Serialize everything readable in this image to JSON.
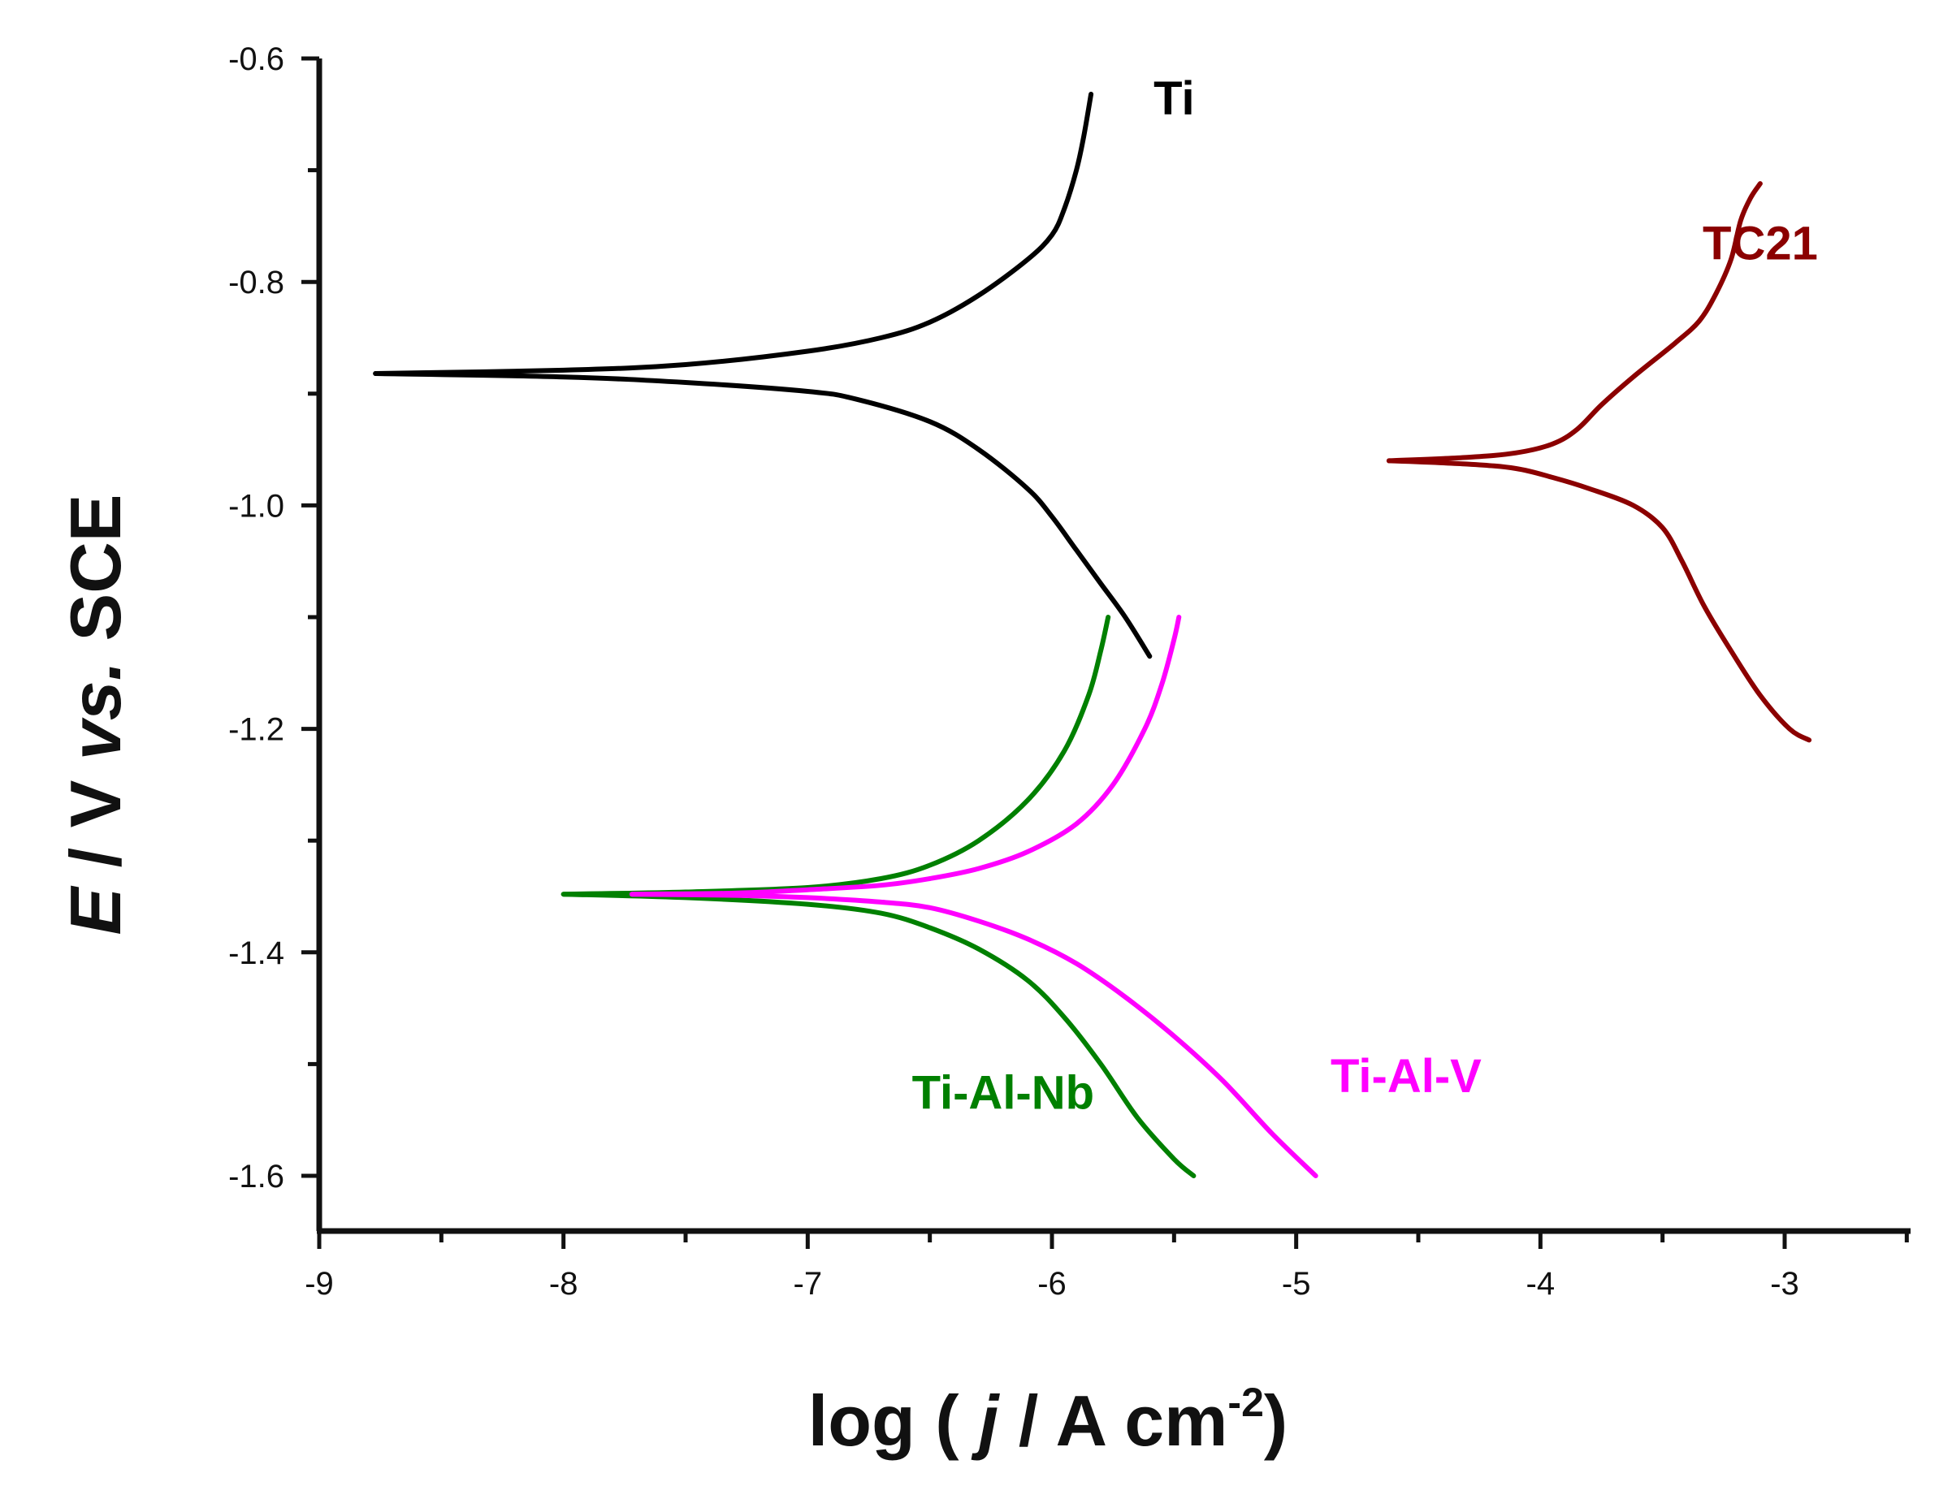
{
  "chart_data": {
    "type": "line",
    "title": "",
    "xlabel": {
      "prefix": "log ( ",
      "var": "j",
      "middle": " / A cm",
      "sup": "-2",
      "suffix": ")"
    },
    "ylabel": {
      "var": "E",
      "middle": " / V ",
      "vs": "vs.",
      "suffix": " SCE"
    },
    "xlim": [
      -9,
      -2.5
    ],
    "ylim": [
      -1.65,
      -0.6
    ],
    "xticks": [
      -9,
      -8,
      -7,
      -6,
      -5,
      -4,
      -3
    ],
    "xtick_labels": [
      "-9",
      "-8",
      "-7",
      "-6",
      "-5",
      "-4",
      "-3"
    ],
    "yticks": [
      -0.6,
      -0.8,
      -1.0,
      -1.2,
      -1.4,
      -1.6
    ],
    "ytick_labels": [
      "-0.6",
      "-0.8",
      "-1.0",
      "-1.2",
      "-1.4",
      "-1.6"
    ],
    "legend": "inline labels",
    "series": [
      {
        "name": "Ti",
        "color": "#000000",
        "label_at": [
          -5.5,
          -0.65
        ],
        "anodic": [
          [
            -8.77,
            -0.882
          ],
          [
            -8.0,
            -0.879
          ],
          [
            -7.5,
            -0.874
          ],
          [
            -7.0,
            -0.862
          ],
          [
            -6.7,
            -0.85
          ],
          [
            -6.5,
            -0.836
          ],
          [
            -6.3,
            -0.812
          ],
          [
            -6.1,
            -0.78
          ],
          [
            -6.0,
            -0.758
          ],
          [
            -5.95,
            -0.735
          ],
          [
            -5.9,
            -0.7
          ],
          [
            -5.87,
            -0.67
          ],
          [
            -5.84,
            -0.632
          ]
        ],
        "cathodic": [
          [
            -8.77,
            -0.882
          ],
          [
            -8.0,
            -0.885
          ],
          [
            -7.5,
            -0.89
          ],
          [
            -7.0,
            -0.898
          ],
          [
            -6.8,
            -0.905
          ],
          [
            -6.5,
            -0.925
          ],
          [
            -6.3,
            -0.95
          ],
          [
            -6.1,
            -0.985
          ],
          [
            -6.0,
            -1.01
          ],
          [
            -5.9,
            -1.04
          ],
          [
            -5.8,
            -1.07
          ],
          [
            -5.7,
            -1.1
          ],
          [
            -5.6,
            -1.135
          ]
        ]
      },
      {
        "name": "TC21",
        "color": "#8b0000",
        "label_at": [
          -3.1,
          -0.78
        ],
        "anodic": [
          [
            -4.62,
            -0.96
          ],
          [
            -4.3,
            -0.957
          ],
          [
            -4.1,
            -0.953
          ],
          [
            -3.95,
            -0.945
          ],
          [
            -3.85,
            -0.932
          ],
          [
            -3.75,
            -0.91
          ],
          [
            -3.62,
            -0.885
          ],
          [
            -3.45,
            -0.855
          ],
          [
            -3.35,
            -0.835
          ],
          [
            -3.28,
            -0.81
          ],
          [
            -3.22,
            -0.78
          ],
          [
            -3.18,
            -0.745
          ],
          [
            -3.14,
            -0.725
          ],
          [
            -3.1,
            -0.712
          ]
        ],
        "cathodic": [
          [
            -4.62,
            -0.96
          ],
          [
            -4.3,
            -0.963
          ],
          [
            -4.1,
            -0.967
          ],
          [
            -3.95,
            -0.975
          ],
          [
            -3.8,
            -0.985
          ],
          [
            -3.62,
            -1.0
          ],
          [
            -3.5,
            -1.02
          ],
          [
            -3.42,
            -1.05
          ],
          [
            -3.33,
            -1.09
          ],
          [
            -3.22,
            -1.13
          ],
          [
            -3.1,
            -1.17
          ],
          [
            -2.98,
            -1.2
          ],
          [
            -2.9,
            -1.21
          ]
        ]
      },
      {
        "name": "Ti-Al-Nb",
        "color": "#008000",
        "label_at": [
          -6.2,
          -1.54
        ],
        "anodic": [
          [
            -8.0,
            -1.348
          ],
          [
            -7.5,
            -1.346
          ],
          [
            -7.0,
            -1.342
          ],
          [
            -6.7,
            -1.334
          ],
          [
            -6.5,
            -1.322
          ],
          [
            -6.3,
            -1.3
          ],
          [
            -6.1,
            -1.264
          ],
          [
            -5.95,
            -1.22
          ],
          [
            -5.85,
            -1.17
          ],
          [
            -5.8,
            -1.13
          ],
          [
            -5.77,
            -1.1
          ]
        ],
        "cathodic": [
          [
            -8.0,
            -1.348
          ],
          [
            -7.5,
            -1.351
          ],
          [
            -7.0,
            -1.357
          ],
          [
            -6.7,
            -1.365
          ],
          [
            -6.5,
            -1.378
          ],
          [
            -6.3,
            -1.397
          ],
          [
            -6.1,
            -1.425
          ],
          [
            -5.95,
            -1.458
          ],
          [
            -5.8,
            -1.5
          ],
          [
            -5.65,
            -1.548
          ],
          [
            -5.5,
            -1.585
          ],
          [
            -5.42,
            -1.6
          ]
        ]
      },
      {
        "name": "Ti-Al-V",
        "color": "#ff00ff",
        "label_at": [
          -4.55,
          -1.525
        ],
        "anodic": [
          [
            -7.72,
            -1.348
          ],
          [
            -7.3,
            -1.347
          ],
          [
            -7.0,
            -1.344
          ],
          [
            -6.7,
            -1.34
          ],
          [
            -6.5,
            -1.334
          ],
          [
            -6.3,
            -1.325
          ],
          [
            -6.1,
            -1.31
          ],
          [
            -5.9,
            -1.285
          ],
          [
            -5.75,
            -1.25
          ],
          [
            -5.62,
            -1.2
          ],
          [
            -5.55,
            -1.16
          ],
          [
            -5.5,
            -1.12
          ],
          [
            -5.48,
            -1.1
          ]
        ],
        "cathodic": [
          [
            -7.72,
            -1.348
          ],
          [
            -7.3,
            -1.349
          ],
          [
            -7.0,
            -1.351
          ],
          [
            -6.7,
            -1.355
          ],
          [
            -6.5,
            -1.36
          ],
          [
            -6.3,
            -1.372
          ],
          [
            -6.1,
            -1.388
          ],
          [
            -5.9,
            -1.41
          ],
          [
            -5.7,
            -1.44
          ],
          [
            -5.5,
            -1.475
          ],
          [
            -5.3,
            -1.515
          ],
          [
            -5.1,
            -1.562
          ],
          [
            -4.92,
            -1.6
          ]
        ]
      }
    ]
  }
}
